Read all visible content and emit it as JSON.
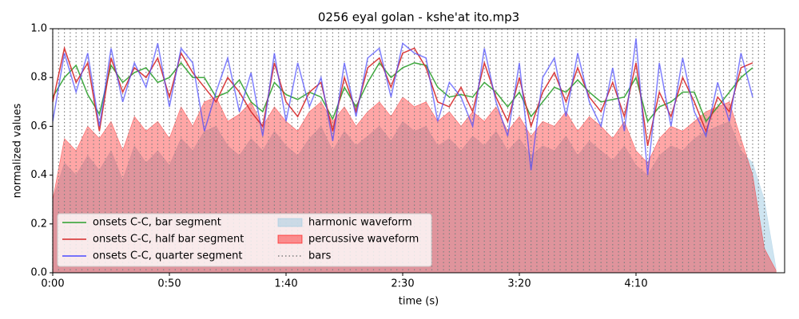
{
  "chart_data": {
    "type": "line",
    "title": "0256 eyal golan - kshe'at ito.mp3",
    "xlabel": "time (s)",
    "ylabel": "normalized values",
    "xlim": [
      0,
      313.7
    ],
    "ylim": [
      0,
      1
    ],
    "xticks": [
      {
        "value": 0,
        "label": "0:00"
      },
      {
        "value": 50,
        "label": "0:50"
      },
      {
        "value": 100,
        "label": "1:40"
      },
      {
        "value": 150,
        "label": "2:30"
      },
      {
        "value": 200,
        "label": "3:20"
      },
      {
        "value": 250,
        "label": "4:10"
      }
    ],
    "yticks": [
      {
        "value": 0,
        "label": "0.0"
      },
      0.2,
      0.4,
      0.6,
      0.8,
      {
        "value": 1,
        "label": "1.0"
      }
    ],
    "legend": "lower left",
    "x": [
      0,
      5,
      10,
      15,
      20,
      25,
      30,
      35,
      40,
      45,
      50,
      55,
      60,
      65,
      70,
      75,
      80,
      85,
      90,
      95,
      100,
      105,
      110,
      115,
      120,
      125,
      130,
      135,
      140,
      145,
      150,
      155,
      160,
      165,
      170,
      175,
      180,
      185,
      190,
      195,
      200,
      205,
      210,
      215,
      220,
      225,
      230,
      235,
      240,
      245,
      250,
      255,
      260,
      265,
      270,
      275,
      280,
      285,
      290,
      295,
      300,
      305,
      310
    ],
    "areas": [
      {
        "name": "harmonic waveform",
        "color": "#9ecae1",
        "values": [
          0.3,
          0.45,
          0.4,
          0.48,
          0.42,
          0.5,
          0.38,
          0.52,
          0.45,
          0.5,
          0.44,
          0.55,
          0.5,
          0.58,
          0.6,
          0.52,
          0.48,
          0.55,
          0.5,
          0.58,
          0.52,
          0.48,
          0.55,
          0.6,
          0.5,
          0.58,
          0.52,
          0.56,
          0.6,
          0.54,
          0.62,
          0.58,
          0.6,
          0.52,
          0.55,
          0.5,
          0.56,
          0.52,
          0.58,
          0.5,
          0.55,
          0.48,
          0.52,
          0.5,
          0.56,
          0.48,
          0.54,
          0.5,
          0.46,
          0.52,
          0.44,
          0.4,
          0.48,
          0.52,
          0.5,
          0.55,
          0.58,
          0.6,
          0.62,
          0.5,
          0.45,
          0.3,
          0.02
        ]
      },
      {
        "name": "percussive waveform",
        "color": "#ff0000",
        "values": [
          0.3,
          0.55,
          0.5,
          0.6,
          0.55,
          0.62,
          0.5,
          0.64,
          0.58,
          0.62,
          0.55,
          0.68,
          0.6,
          0.7,
          0.72,
          0.62,
          0.65,
          0.7,
          0.6,
          0.68,
          0.62,
          0.58,
          0.66,
          0.7,
          0.62,
          0.68,
          0.6,
          0.66,
          0.7,
          0.64,
          0.72,
          0.68,
          0.7,
          0.62,
          0.66,
          0.6,
          0.66,
          0.62,
          0.68,
          0.58,
          0.64,
          0.56,
          0.62,
          0.6,
          0.66,
          0.58,
          0.64,
          0.6,
          0.55,
          0.62,
          0.5,
          0.45,
          0.55,
          0.6,
          0.58,
          0.62,
          0.66,
          0.68,
          0.7,
          0.55,
          0.4,
          0.1,
          0.01
        ]
      }
    ],
    "series": [
      {
        "name": "onsets C-C, bar segment",
        "color": "#2ca02c",
        "values": [
          0.72,
          0.8,
          0.85,
          0.73,
          0.65,
          0.85,
          0.78,
          0.82,
          0.84,
          0.78,
          0.8,
          0.86,
          0.8,
          0.8,
          0.72,
          0.74,
          0.79,
          0.7,
          0.66,
          0.78,
          0.73,
          0.71,
          0.74,
          0.72,
          0.63,
          0.76,
          0.68,
          0.78,
          0.86,
          0.8,
          0.84,
          0.86,
          0.85,
          0.76,
          0.72,
          0.73,
          0.72,
          0.78,
          0.74,
          0.68,
          0.74,
          0.64,
          0.7,
          0.76,
          0.74,
          0.79,
          0.74,
          0.7,
          0.71,
          0.72,
          0.8,
          0.62,
          0.68,
          0.7,
          0.74,
          0.74,
          0.62,
          0.68,
          0.74,
          0.8,
          0.84,
          null,
          null
        ]
      },
      {
        "name": "onsets C-C, half bar segment",
        "color": "#d62728",
        "values": [
          0.7,
          0.92,
          0.78,
          0.86,
          0.58,
          0.88,
          0.74,
          0.84,
          0.8,
          0.88,
          0.72,
          0.9,
          0.82,
          0.76,
          0.7,
          0.8,
          0.74,
          0.66,
          0.6,
          0.86,
          0.7,
          0.64,
          0.74,
          0.78,
          0.58,
          0.8,
          0.66,
          0.84,
          0.88,
          0.76,
          0.9,
          0.92,
          0.84,
          0.7,
          0.68,
          0.76,
          0.66,
          0.86,
          0.72,
          0.62,
          0.8,
          0.6,
          0.74,
          0.82,
          0.7,
          0.84,
          0.72,
          0.66,
          0.78,
          0.64,
          0.86,
          0.52,
          0.74,
          0.64,
          0.8,
          0.7,
          0.58,
          0.72,
          0.66,
          0.84,
          0.86,
          null,
          null
        ]
      },
      {
        "name": "onsets C-C, quarter segment",
        "color": "#4a4aff",
        "values": [
          0.62,
          0.9,
          0.74,
          0.9,
          0.6,
          0.92,
          0.7,
          0.86,
          0.76,
          0.94,
          0.68,
          0.92,
          0.86,
          0.58,
          0.74,
          0.88,
          0.66,
          0.82,
          0.56,
          0.9,
          0.62,
          0.86,
          0.68,
          0.8,
          0.54,
          0.86,
          0.64,
          0.88,
          0.92,
          0.72,
          0.94,
          0.9,
          0.88,
          0.62,
          0.78,
          0.72,
          0.6,
          0.92,
          0.7,
          0.56,
          0.86,
          0.42,
          0.8,
          0.88,
          0.64,
          0.9,
          0.7,
          0.6,
          0.84,
          0.58,
          0.96,
          0.4,
          0.86,
          0.6,
          0.88,
          0.66,
          0.56,
          0.78,
          0.62,
          0.9,
          0.72,
          null,
          null
        ]
      }
    ],
    "bars": {
      "name": "bars",
      "color": "#808080",
      "x": [
        0,
        2.5,
        5,
        7.5,
        10,
        12.5,
        15,
        17.5,
        20,
        22.5,
        25,
        27.5,
        30,
        32.5,
        35,
        37.5,
        40,
        42.5,
        45,
        47.5,
        50,
        52.5,
        55,
        57.5,
        60,
        62.5,
        65,
        67.5,
        70,
        72.5,
        75,
        77.5,
        80,
        82.5,
        85,
        87.5,
        90,
        92.5,
        95,
        97.5,
        100,
        102.5,
        105,
        107.5,
        110,
        112.5,
        115,
        117.5,
        120,
        122.5,
        125,
        127.5,
        130,
        132.5,
        135,
        137.5,
        140,
        142.5,
        145,
        147.5,
        150,
        152.5,
        155,
        157.5,
        160,
        162.5,
        165,
        167.5,
        170,
        172.5,
        175,
        177.5,
        180,
        182.5,
        185,
        187.5,
        190,
        192.5,
        195,
        197.5,
        200,
        202.5,
        205,
        207.5,
        210,
        212.5,
        215,
        217.5,
        220,
        222.5,
        225,
        227.5,
        230,
        232.5,
        235,
        237.5,
        240,
        242.5,
        245,
        247.5,
        250,
        252.5,
        255,
        257.5,
        260,
        262.5,
        265,
        267.5,
        270,
        272.5,
        275,
        277.5,
        280,
        282.5,
        285,
        287.5,
        290,
        292.5,
        295,
        297.5,
        300,
        302.5,
        305
      ]
    }
  }
}
